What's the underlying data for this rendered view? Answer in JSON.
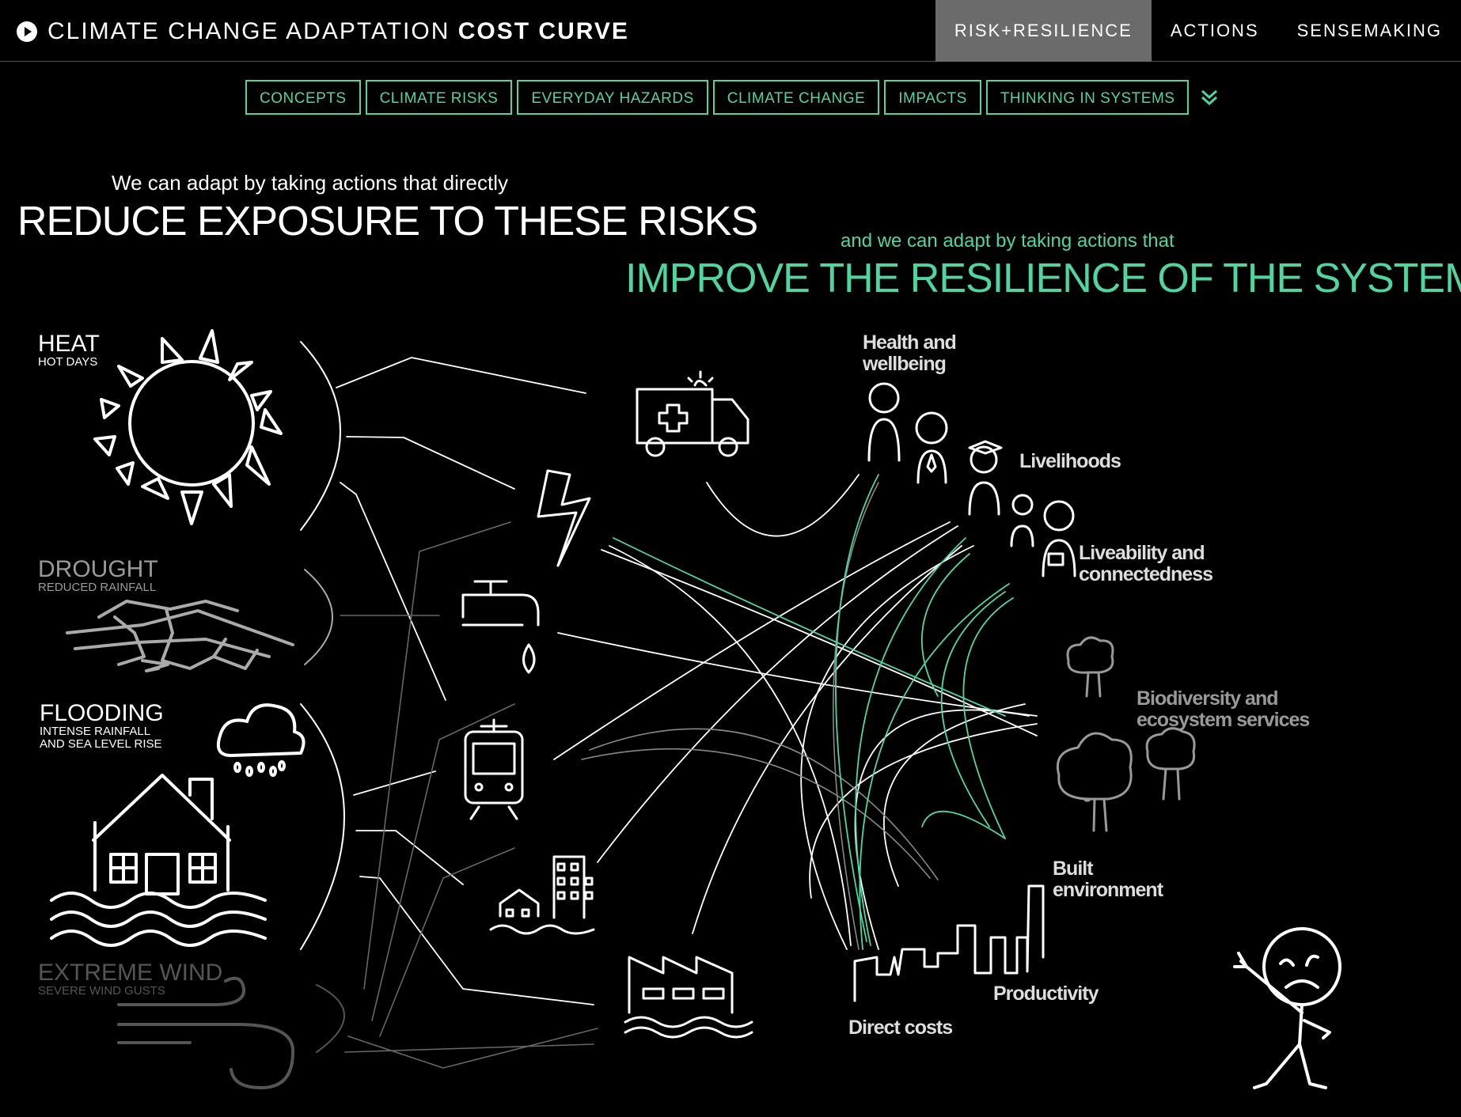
{
  "header": {
    "title_prefix": "CLIMATE CHANGE ADAPTATION",
    "title_strong": "COST CURVE",
    "play_icon": "play-circle-icon"
  },
  "main_nav": [
    {
      "label": "RISK+RESILIENCE",
      "active": true
    },
    {
      "label": "ACTIONS",
      "active": false
    },
    {
      "label": "SENSEMAKING",
      "active": false
    }
  ],
  "sub_nav": [
    {
      "label": "CONCEPTS"
    },
    {
      "label": "CLIMATE RISKS"
    },
    {
      "label": "EVERYDAY HAZARDS"
    },
    {
      "label": "CLIMATE CHANGE"
    },
    {
      "label": "IMPACTS"
    },
    {
      "label": "THINKING IN SYSTEMS"
    }
  ],
  "sub_nav_more_icon": "double-chevron-down-icon",
  "intro": {
    "line1": "We can adapt by taking actions that directly",
    "heading1": "REDUCE EXPOSURE TO THESE RISKS",
    "line2": "and we can adapt by taking actions that",
    "heading2": "IMPROVE THE RESILIENCE OF THE SYSTEM"
  },
  "hazards": [
    {
      "name": "HEAT",
      "sub": "HOT DAYS",
      "color": "#ffffff"
    },
    {
      "name": "DROUGHT",
      "sub": "REDUCED RAINFALL",
      "color": "#9a9a9a"
    },
    {
      "name": "FLOODING",
      "sub1": "INTENSE RAINFALL",
      "sub2": "AND SEA LEVEL RISE",
      "color": "#ffffff"
    },
    {
      "name": "EXTREME WIND",
      "sub": "SEVERE WIND GUSTS",
      "color": "#555555"
    }
  ],
  "outcomes": [
    {
      "line1": "Health and",
      "line2": "wellbeing"
    },
    {
      "line1": "Livelihoods"
    },
    {
      "line1": "Liveability and",
      "line2": "connectedness"
    },
    {
      "line1": "Biodiversity and",
      "line2": "ecosystem services"
    },
    {
      "line1": "Built",
      "line2": "environment"
    },
    {
      "line1": "Productivity"
    },
    {
      "line1": "Direct costs"
    }
  ],
  "colors": {
    "accent": "#4fd6a0",
    "active_nav": "#6b6b6b",
    "background": "#000000"
  }
}
